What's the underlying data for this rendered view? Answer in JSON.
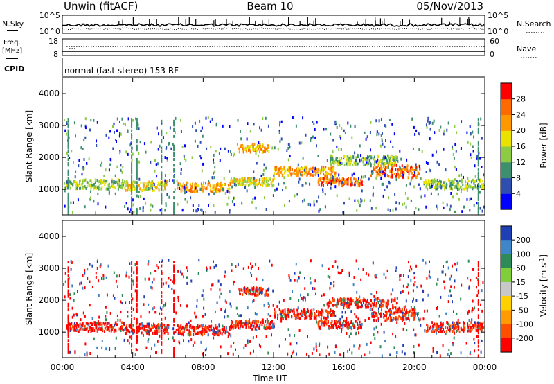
{
  "header": {
    "radar": "Unwin (fitACF)",
    "beam": "Beam 10",
    "date": "05/Nov/2013"
  },
  "chart_data": [
    {
      "type": "line",
      "name": "noise-panel",
      "left_label": "N.Sky",
      "right_label": "N.Search",
      "left_ticks": [
        "10^5",
        "10^0"
      ],
      "right_ticks": [
        "10^5",
        "10^0"
      ],
      "scale": "log",
      "ylim": [
        1,
        100000
      ]
    },
    {
      "type": "line",
      "name": "freq-nave-panel",
      "left_label": "Freq.",
      "left_unit": "[MHz]",
      "right_label": "Nave",
      "left_ticks": [
        "18",
        "8"
      ],
      "right_ticks": [
        "60",
        "0"
      ],
      "left_range": [
        8,
        18
      ],
      "right_range": [
        0,
        60
      ]
    },
    {
      "type": "table",
      "name": "cpid-panel",
      "label": "CPID",
      "mode": "normal (fast stereo) 153 RF"
    },
    {
      "type": "heatmap",
      "name": "power-panel",
      "ylabel": "Slant Range [km]",
      "yticks": [
        "1000",
        "2000",
        "3000",
        "4000"
      ],
      "ylim": [
        200,
        4500
      ],
      "colorbar": {
        "label": "Power [dB]",
        "ticks": [
          "4",
          "8",
          "12",
          "16",
          "20",
          "24",
          "28"
        ],
        "colors": [
          "#0000ff",
          "#2e4fb0",
          "#3d8f6e",
          "#8ecb45",
          "#e9e100",
          "#ff9800",
          "#ff6a00",
          "#ff0000"
        ]
      },
      "bands": [
        {
          "t0": 0.2,
          "t1": 3.5,
          "r0": 1050,
          "r1": 1350,
          "level": 3
        },
        {
          "t0": 3.5,
          "t1": 6,
          "r0": 1000,
          "r1": 1300,
          "level": 4
        },
        {
          "t0": 6.5,
          "t1": 9.5,
          "r0": 950,
          "r1": 1250,
          "level": 5
        },
        {
          "t0": 9.5,
          "t1": 12,
          "r0": 1150,
          "r1": 1400,
          "level": 4
        },
        {
          "t0": 10,
          "t1": 11.7,
          "r0": 2200,
          "r1": 2450,
          "level": 5
        },
        {
          "t0": 12,
          "t1": 15.5,
          "r0": 1450,
          "r1": 1750,
          "level": 5
        },
        {
          "t0": 14.5,
          "t1": 17,
          "r0": 1150,
          "r1": 1400,
          "level": 6
        },
        {
          "t0": 15,
          "t1": 19,
          "r0": 1800,
          "r1": 2100,
          "level": 3
        },
        {
          "t0": 17.5,
          "t1": 20.3,
          "r0": 1400,
          "r1": 1800,
          "level": 6
        },
        {
          "t0": 20.5,
          "t1": 24,
          "r0": 1050,
          "r1": 1350,
          "level": 3
        }
      ]
    },
    {
      "type": "heatmap",
      "name": "velocity-panel",
      "ylabel": "Slant Range [km]",
      "yticks": [
        "1000",
        "2000",
        "3000",
        "4000"
      ],
      "ylim": [
        200,
        4500
      ],
      "colorbar": {
        "label": "Velocity [m s^-1]",
        "ticks": [
          "200",
          "100",
          "50",
          "15",
          "-15",
          "-50",
          "-100",
          "-200"
        ],
        "colors": [
          "#1f3fb5",
          "#3f86c8",
          "#2e8b57",
          "#7fcf3a",
          "#c8c8c8",
          "#ffd000",
          "#ff9a00",
          "#ff5000",
          "#ff0000"
        ]
      },
      "bands": [
        {
          "t0": 0.2,
          "t1": 3.5,
          "r0": 1050,
          "r1": 1350,
          "level": 8
        },
        {
          "t0": 3.5,
          "t1": 6,
          "r0": 1000,
          "r1": 1300,
          "level": 8
        },
        {
          "t0": 6.5,
          "t1": 9.5,
          "r0": 950,
          "r1": 1250,
          "level": 8
        },
        {
          "t0": 9.5,
          "t1": 12,
          "r0": 1150,
          "r1": 1400,
          "level": 8
        },
        {
          "t0": 10,
          "t1": 11.7,
          "r0": 2200,
          "r1": 2450,
          "level": 8
        },
        {
          "t0": 12,
          "t1": 15.5,
          "r0": 1450,
          "r1": 1750,
          "level": 8
        },
        {
          "t0": 14.5,
          "t1": 17,
          "r0": 1150,
          "r1": 1400,
          "level": 8
        },
        {
          "t0": 15,
          "t1": 19,
          "r0": 1800,
          "r1": 2100,
          "level": 8
        },
        {
          "t0": 17.5,
          "t1": 20.3,
          "r0": 1400,
          "r1": 1800,
          "level": 8
        },
        {
          "t0": 20.5,
          "t1": 24,
          "r0": 1050,
          "r1": 1350,
          "level": 8
        }
      ]
    }
  ],
  "time_axis": {
    "xlabel": "Time UT",
    "ticks": [
      "00:00",
      "04:00",
      "08:00",
      "12:00",
      "16:00",
      "20:00",
      "00:00"
    ],
    "xlim": [
      0,
      24
    ]
  }
}
